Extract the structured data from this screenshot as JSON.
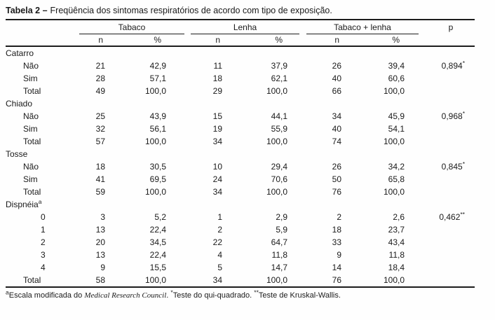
{
  "title": {
    "bold": "Tabela 2 –",
    "text": "Freqüência dos sintomas respiratórios de acordo com tipo de exposição."
  },
  "table": {
    "header": {
      "groups": [
        {
          "label": "Tabaco"
        },
        {
          "label": "Lenha"
        },
        {
          "label": "Tabaco + lenha"
        }
      ],
      "p_label": "p",
      "n_label": "n",
      "pct_label": "%"
    },
    "sections": [
      {
        "name": "Catarro",
        "name_sup": "",
        "rows": [
          {
            "label": "Não",
            "indent": 1,
            "cells": [
              "21",
              "42,9",
              "11",
              "37,9",
              "26",
              "39,4"
            ],
            "p": "0,894",
            "p_sup": "*"
          },
          {
            "label": "Sim",
            "indent": 1,
            "cells": [
              "28",
              "57,1",
              "18",
              "62,1",
              "40",
              "60,6"
            ],
            "p": "",
            "p_sup": ""
          },
          {
            "label": "Total",
            "indent": 1,
            "cells": [
              "49",
              "100,0",
              "29",
              "100,0",
              "66",
              "100,0"
            ],
            "p": "",
            "p_sup": ""
          }
        ]
      },
      {
        "name": "Chiado",
        "name_sup": "",
        "rows": [
          {
            "label": "Não",
            "indent": 1,
            "cells": [
              "25",
              "43,9",
              "15",
              "44,1",
              "34",
              "45,9"
            ],
            "p": "0,968",
            "p_sup": "*"
          },
          {
            "label": "Sim",
            "indent": 1,
            "cells": [
              "32",
              "56,1",
              "19",
              "55,9",
              "40",
              "54,1"
            ],
            "p": "",
            "p_sup": ""
          },
          {
            "label": "Total",
            "indent": 1,
            "cells": [
              "57",
              "100,0",
              "34",
              "100,0",
              "74",
              "100,0"
            ],
            "p": "",
            "p_sup": ""
          }
        ]
      },
      {
        "name": "Tosse",
        "name_sup": "",
        "rows": [
          {
            "label": "Não",
            "indent": 1,
            "cells": [
              "18",
              "30,5",
              "10",
              "29,4",
              "26",
              "34,2"
            ],
            "p": "0,845",
            "p_sup": "*"
          },
          {
            "label": "Sim",
            "indent": 1,
            "cells": [
              "41",
              "69,5",
              "24",
              "70,6",
              "50",
              "65,8"
            ],
            "p": "",
            "p_sup": ""
          },
          {
            "label": "Total",
            "indent": 1,
            "cells": [
              "59",
              "100,0",
              "34",
              "100,0",
              "76",
              "100,0"
            ],
            "p": "",
            "p_sup": ""
          }
        ]
      },
      {
        "name": "Dispnéia",
        "name_sup": "a",
        "rows": [
          {
            "label": "0",
            "indent": 2,
            "cells": [
              "3",
              "5,2",
              "1",
              "2,9",
              "2",
              "2,6"
            ],
            "p": "0,462",
            "p_sup": "**"
          },
          {
            "label": "1",
            "indent": 2,
            "cells": [
              "13",
              "22,4",
              "2",
              "5,9",
              "18",
              "23,7"
            ],
            "p": "",
            "p_sup": ""
          },
          {
            "label": "2",
            "indent": 2,
            "cells": [
              "20",
              "34,5",
              "22",
              "64,7",
              "33",
              "43,4"
            ],
            "p": "",
            "p_sup": ""
          },
          {
            "label": "3",
            "indent": 2,
            "cells": [
              "13",
              "22,4",
              "4",
              "11,8",
              "9",
              "11,8"
            ],
            "p": "",
            "p_sup": ""
          },
          {
            "label": "4",
            "indent": 2,
            "cells": [
              "9",
              "15,5",
              "5",
              "14,7",
              "14",
              "18,4"
            ],
            "p": "",
            "p_sup": ""
          },
          {
            "label": "Total",
            "indent": 1,
            "cells": [
              "58",
              "100,0",
              "34",
              "100,0",
              "76",
              "100,0"
            ],
            "p": "",
            "p_sup": ""
          }
        ]
      }
    ]
  },
  "footnote": {
    "marker1": "a",
    "text1": "Escala modificada do ",
    "italic": "Medical Research Council",
    "text2": ". ",
    "marker2": "*",
    "text3": "Teste do qui-quadrado. ",
    "marker3": "**",
    "text4": "Teste de Kruskal-Wallis."
  }
}
